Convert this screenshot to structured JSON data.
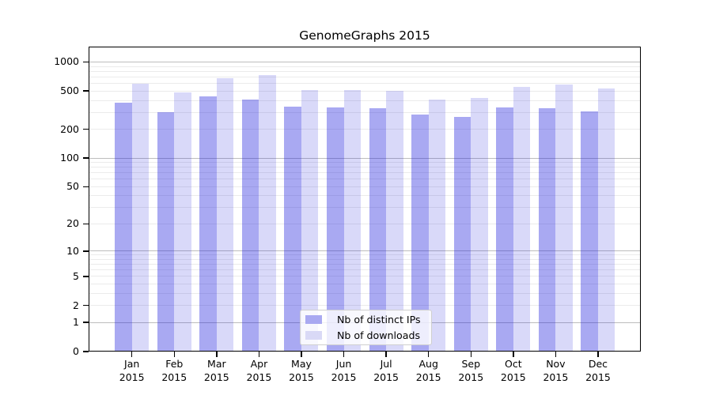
{
  "title": "GenomeGraphs 2015",
  "chart_data": {
    "type": "bar",
    "title": "GenomeGraphs 2015",
    "y_scale": "log1p",
    "categories": [
      "Jan",
      "Feb",
      "Mar",
      "Apr",
      "May",
      "Jun",
      "Jul",
      "Aug",
      "Sep",
      "Oct",
      "Nov",
      "Dec"
    ],
    "year_label": "2015",
    "series": [
      {
        "name": "Nb of distinct IPs",
        "swatch_color": "#a9a9f1",
        "fill_rgba": "rgba(30,30,220,0.38)",
        "values": [
          375,
          300,
          440,
          410,
          345,
          340,
          330,
          285,
          270,
          340,
          330,
          310
        ]
      },
      {
        "name": "Nb of downloads",
        "swatch_color": "#d9d9f6",
        "fill_rgba": "rgba(30,30,220,0.17)",
        "values": [
          600,
          480,
          675,
          730,
          510,
          510,
          500,
          410,
          425,
          555,
          585,
          535
        ]
      }
    ],
    "yticks": [
      0,
      1,
      2,
      5,
      10,
      20,
      50,
      100,
      200,
      500,
      1000
    ],
    "major_gridlines": [
      1,
      10,
      100,
      1000
    ],
    "minor_gridlines": [
      2,
      3,
      4,
      5,
      6,
      7,
      8,
      9,
      20,
      30,
      40,
      50,
      60,
      70,
      80,
      90,
      200,
      300,
      400,
      500,
      600,
      700,
      800,
      900
    ],
    "ylim": [
      0,
      1450
    ],
    "xlabel": "",
    "ylabel": "",
    "grid": true,
    "legend_position": "lower-center"
  }
}
